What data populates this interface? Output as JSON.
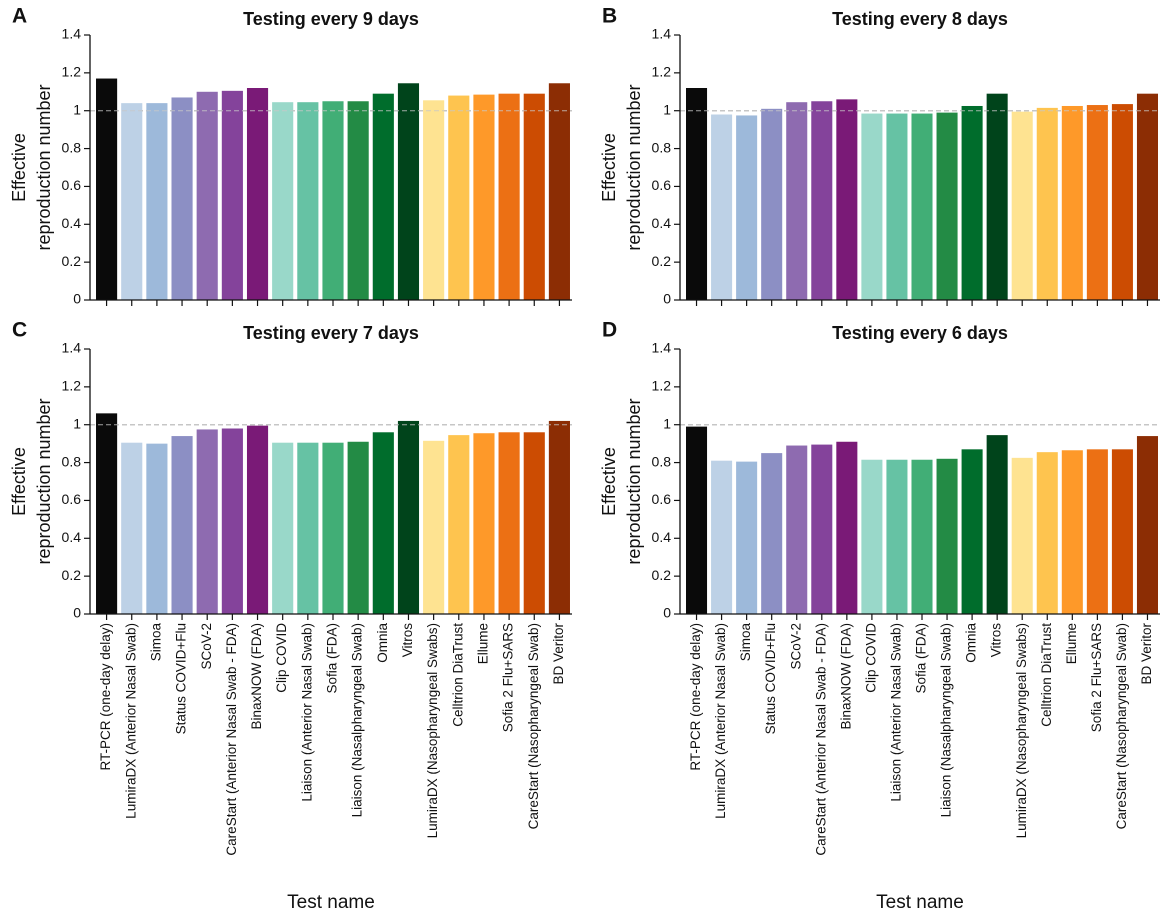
{
  "chart_data": [
    {
      "type": "bar",
      "panel": "A",
      "title": "Testing every 9 days",
      "ylabel": [
        "Effective",
        "reproduction number"
      ],
      "categories": [
        null,
        null,
        null,
        null,
        null,
        null,
        null,
        null,
        null,
        null,
        null,
        null,
        null,
        null,
        null,
        null,
        null,
        null,
        null
      ],
      "values": [
        1.17,
        1.04,
        1.04,
        1.07,
        1.1,
        1.105,
        1.12,
        1.045,
        1.045,
        1.05,
        1.05,
        1.09,
        1.145,
        1.055,
        1.08,
        1.085,
        1.09,
        1.09,
        1.145
      ],
      "colors": [
        "#0a0a0a",
        "#bdd1e6",
        "#9db9da",
        "#8c8fc4",
        "#8e6bb0",
        "#84439b",
        "#7a1a77",
        "#99d8c9",
        "#66c2a4",
        "#41ae76",
        "#238b45",
        "#006d2c",
        "#00441b",
        "#fee391",
        "#fec44f",
        "#fe9929",
        "#ec7014",
        "#cc4c02",
        "#8c2d04"
      ],
      "ylim": [
        0,
        1.4
      ],
      "yticks": [
        0,
        0.2,
        0.4,
        0.6,
        0.8,
        1,
        1.2,
        1.4
      ],
      "hline": 1
    },
    {
      "type": "bar",
      "panel": "B",
      "title": "Testing every 8 days",
      "ylabel": [
        "Effective",
        "reproduction number"
      ],
      "categories": [
        null,
        null,
        null,
        null,
        null,
        null,
        null,
        null,
        null,
        null,
        null,
        null,
        null,
        null,
        null,
        null,
        null,
        null,
        null
      ],
      "values": [
        1.12,
        0.98,
        0.975,
        1.01,
        1.045,
        1.05,
        1.06,
        0.985,
        0.985,
        0.985,
        0.99,
        1.025,
        1.09,
        0.995,
        1.015,
        1.025,
        1.03,
        1.035,
        1.09
      ],
      "colors": [
        "#0a0a0a",
        "#bdd1e6",
        "#9db9da",
        "#8c8fc4",
        "#8e6bb0",
        "#84439b",
        "#7a1a77",
        "#99d8c9",
        "#66c2a4",
        "#41ae76",
        "#238b45",
        "#006d2c",
        "#00441b",
        "#fee391",
        "#fec44f",
        "#fe9929",
        "#ec7014",
        "#cc4c02",
        "#8c2d04"
      ],
      "ylim": [
        0,
        1.4
      ],
      "yticks": [
        0,
        0.2,
        0.4,
        0.6,
        0.8,
        1,
        1.2,
        1.4
      ],
      "hline": 1
    },
    {
      "type": "bar",
      "panel": "C",
      "title": "Testing every 7 days",
      "ylabel": [
        "Effective",
        "reproduction number"
      ],
      "xlabel": "Test name",
      "categories": [
        "RT-PCR (one-day delay)",
        "LumiraDX (Anterior Nasal Swab)",
        "Simoa",
        "Status COVID+Flu",
        "SCoV-2",
        "CareStart (Anterior Nasal Swab - FDA)",
        "BinaxNOW (FDA)",
        "Clip COVID",
        "Liaison (Anterior Nasal Swab)",
        "Sofia (FDA)",
        "Liaison (Nasalpharyngeal Swab)",
        "Omnia",
        "Vitros",
        "LumiraDX (Nasopharyngeal Swabs)",
        "Celltrion DiaTrust",
        "Ellume",
        "Sofia 2 Flu+SARS",
        "CareStart (Nasopharyngeal Swab)",
        "BD Veritor"
      ],
      "values": [
        1.06,
        0.905,
        0.9,
        0.94,
        0.975,
        0.98,
        0.995,
        0.905,
        0.905,
        0.905,
        0.91,
        0.96,
        1.02,
        0.915,
        0.945,
        0.955,
        0.96,
        0.96,
        1.02
      ],
      "colors": [
        "#0a0a0a",
        "#bdd1e6",
        "#9db9da",
        "#8c8fc4",
        "#8e6bb0",
        "#84439b",
        "#7a1a77",
        "#99d8c9",
        "#66c2a4",
        "#41ae76",
        "#238b45",
        "#006d2c",
        "#00441b",
        "#fee391",
        "#fec44f",
        "#fe9929",
        "#ec7014",
        "#cc4c02",
        "#8c2d04"
      ],
      "ylim": [
        0,
        1.4
      ],
      "yticks": [
        0,
        0.2,
        0.4,
        0.6,
        0.8,
        1,
        1.2,
        1.4
      ],
      "hline": 1
    },
    {
      "type": "bar",
      "panel": "D",
      "title": "Testing every 6 days",
      "ylabel": [
        "Effective",
        "reproduction number"
      ],
      "xlabel": "Test name",
      "categories": [
        "RT-PCR (one-day delay)",
        "LumiraDX (Anterior Nasal Swab)",
        "Simoa",
        "Status COVID+Flu",
        "SCoV-2",
        "CareStart (Anterior Nasal Swab - FDA)",
        "BinaxNOW (FDA)",
        "Clip COVID",
        "Liaison (Anterior Nasal Swab)",
        "Sofia (FDA)",
        "Liaison (Nasalpharyngeal Swab)",
        "Omnia",
        "Vitros",
        "LumiraDX (Nasopharyngeal Swabs)",
        "Celltrion DiaTrust",
        "Ellume",
        "Sofia 2 Flu+SARS",
        "CareStart (Nasopharyngeal Swab)",
        "BD Veritor"
      ],
      "values": [
        0.99,
        0.81,
        0.805,
        0.85,
        0.89,
        0.895,
        0.91,
        0.815,
        0.815,
        0.815,
        0.82,
        0.87,
        0.945,
        0.825,
        0.855,
        0.865,
        0.87,
        0.87,
        0.94
      ],
      "colors": [
        "#0a0a0a",
        "#bdd1e6",
        "#9db9da",
        "#8c8fc4",
        "#8e6bb0",
        "#84439b",
        "#7a1a77",
        "#99d8c9",
        "#66c2a4",
        "#41ae76",
        "#238b45",
        "#006d2c",
        "#00441b",
        "#fee391",
        "#fec44f",
        "#fe9929",
        "#ec7014",
        "#cc4c02",
        "#8c2d04"
      ],
      "ylim": [
        0,
        1.4
      ],
      "yticks": [
        0,
        0.2,
        0.4,
        0.6,
        0.8,
        1,
        1.2,
        1.4
      ],
      "hline": 1
    }
  ]
}
